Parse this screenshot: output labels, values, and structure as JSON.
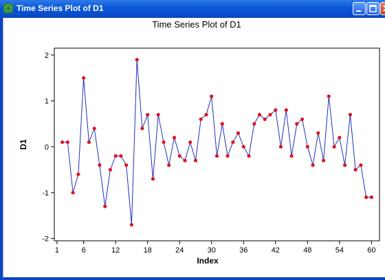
{
  "window": {
    "title": "Time Series Plot of D1",
    "buttons": [
      "minimize",
      "maximize",
      "close"
    ],
    "icon": "minitab-graph-icon"
  },
  "colors": {
    "titlebar": "#0a57d9",
    "line": "#1f2fb8",
    "points": "#e0141e"
  },
  "chart_data": {
    "type": "line",
    "title": "Time Series Plot of D1",
    "xlabel": "Index",
    "ylabel": "D1",
    "xlim": [
      0.5,
      61.5
    ],
    "ylim": [
      -2.05,
      2.15
    ],
    "x_ticks": [
      1,
      6,
      12,
      18,
      24,
      30,
      36,
      42,
      48,
      54,
      60
    ],
    "y_ticks": [
      -2,
      -1,
      0,
      1,
      2
    ],
    "grid": false,
    "legend": "none",
    "x": [
      2,
      3,
      4,
      5,
      6,
      7,
      8,
      9,
      10,
      11,
      12,
      13,
      14,
      15,
      16,
      17,
      18,
      19,
      20,
      21,
      22,
      23,
      24,
      25,
      26,
      27,
      28,
      29,
      30,
      31,
      32,
      33,
      34,
      35,
      36,
      37,
      38,
      39,
      40,
      41,
      42,
      43,
      44,
      45,
      46,
      47,
      48,
      49,
      50,
      51,
      52,
      53,
      54,
      55,
      56,
      57,
      58,
      59,
      60
    ],
    "series": [
      {
        "values": [
          0.1,
          0.1,
          -1.0,
          -0.6,
          1.5,
          0.1,
          0.4,
          -0.4,
          -1.3,
          -0.5,
          -0.2,
          -0.2,
          -0.4,
          -1.7,
          1.9,
          0.4,
          0.7,
          -0.7,
          0.7,
          0.1,
          -0.4,
          0.2,
          -0.2,
          -0.3,
          0.1,
          -0.3,
          0.6,
          0.7,
          1.1,
          -0.2,
          0.5,
          -0.2,
          0.1,
          0.3,
          0.0,
          -0.2,
          0.5,
          0.7,
          0.6,
          0.7,
          0.8,
          0.0,
          0.8,
          -0.2,
          0.5,
          0.6,
          0.0,
          -0.4,
          0.3,
          -0.3,
          1.1,
          0.0,
          0.2,
          -0.4,
          0.7,
          -0.5,
          -0.4,
          -1.1,
          -1.1
        ]
      }
    ]
  }
}
